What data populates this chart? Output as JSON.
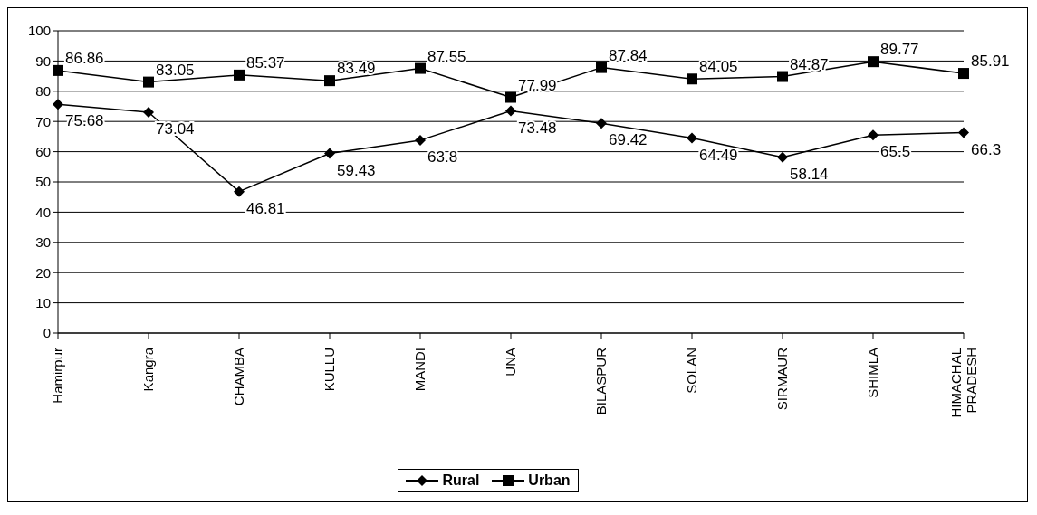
{
  "chart_data": {
    "type": "line",
    "categories": [
      "Hamirpur",
      "Kangra",
      "CHAMBA",
      "KULLU",
      "MANDI",
      "UNA",
      "BILASPUR",
      "SOLAN",
      "SIRMAUR",
      "SHIMLA",
      "HIMACHAL PRADESH"
    ],
    "series": [
      {
        "name": "Rural",
        "color": "#000000",
        "marker": "diamond",
        "values": [
          75.68,
          73.04,
          46.81,
          59.43,
          63.8,
          73.48,
          69.42,
          64.49,
          58.14,
          65.5,
          66.3
        ]
      },
      {
        "name": "Urban",
        "color": "#000000",
        "marker": "square",
        "values": [
          86.86,
          83.05,
          85.37,
          83.49,
          87.55,
          77.99,
          87.84,
          84.05,
          84.87,
          89.77,
          85.91
        ]
      }
    ],
    "ylim": [
      0,
      100
    ],
    "yticks": [
      0,
      10,
      20,
      30,
      40,
      50,
      60,
      70,
      80,
      90,
      100
    ],
    "grid": "y",
    "legend": "bottom",
    "data_labels": true,
    "line_style": "solid"
  }
}
